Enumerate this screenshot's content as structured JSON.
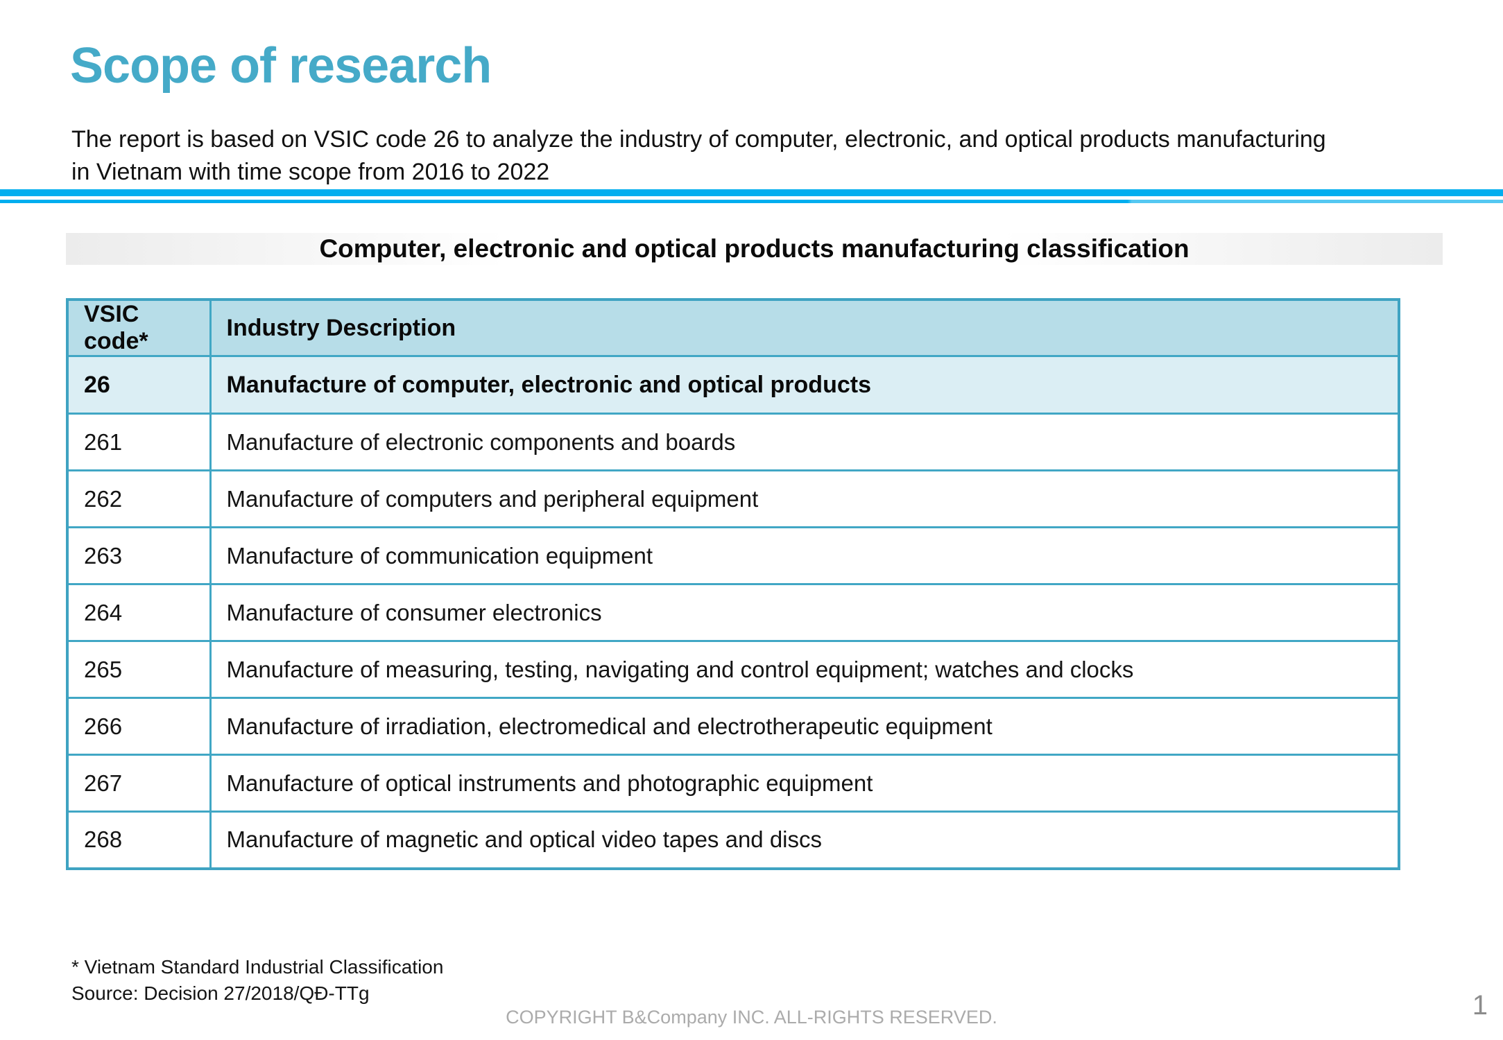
{
  "slide": {
    "title": "Scope of research",
    "intro_line1": "The report is based on VSIC code 26 to analyze the industry of computer, electronic, and optical products manufacturing",
    "intro_line2": "in Vietnam with time scope from 2016 to 2022"
  },
  "table": {
    "caption": "Computer, electronic and optical products manufacturing classification",
    "columns": [
      "VSIC code*",
      "Industry Description"
    ],
    "rows": [
      {
        "code": "26",
        "description": "Manufacture of computer, electronic and optical products",
        "emphasis": true
      },
      {
        "code": "261",
        "description": "Manufacture of electronic components and boards",
        "emphasis": false
      },
      {
        "code": "262",
        "description": "Manufacture of computers and peripheral equipment",
        "emphasis": false
      },
      {
        "code": "263",
        "description": "Manufacture of communication equipment",
        "emphasis": false
      },
      {
        "code": "264",
        "description": "Manufacture of consumer electronics",
        "emphasis": false
      },
      {
        "code": "265",
        "description": "Manufacture of measuring, testing, navigating and control equipment; watches and clocks",
        "emphasis": false
      },
      {
        "code": "266",
        "description": "Manufacture of irradiation, electromedical and electrotherapeutic equipment",
        "emphasis": false
      },
      {
        "code": "267",
        "description": "Manufacture of optical instruments and photographic equipment",
        "emphasis": false
      },
      {
        "code": "268",
        "description": "Manufacture of magnetic and optical video tapes and discs",
        "emphasis": false
      }
    ]
  },
  "footer": {
    "note": "* Vietnam Standard Industrial Classification",
    "source": "Source: Decision 27/2018/QĐ-TTg",
    "copyright": "COPYRIGHT B&Company INC. ALL-RIGHTS RESERVED.",
    "page_number": "1"
  },
  "colors": {
    "accent_teal": "#45AAC8",
    "divider_blue": "#00AEEF",
    "table_border": "#41A7C5",
    "table_header_bg": "#B7DDE8",
    "highlight_row_bg": "#DBEEF4",
    "footer_gray": "#ABABAB"
  }
}
